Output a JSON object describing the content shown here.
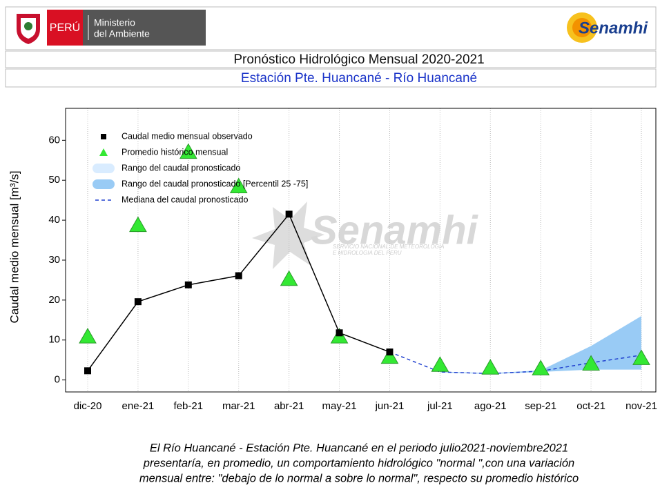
{
  "header": {
    "country": "PERÚ",
    "ministry_1": "Ministerio",
    "ministry_2": "del Ambiente",
    "brand": "Senamhi",
    "title": "Pronóstico Hidrológico Mensual 2020-2021",
    "subtitle": "Estación Pte. Huancané - Río Huancané"
  },
  "chart_data": {
    "type": "line",
    "y_label": "Caudal medio mensual  [m³/s]",
    "watermark": "Senamhi",
    "watermark_sub_1": "SERVICIO NACIONAL DE METEOROLOGIA",
    "watermark_sub_2": "E HIDROLOGIA DEL PERU",
    "categories": [
      "dic-20",
      "ene-21",
      "feb-21",
      "mar-21",
      "abr-21",
      "may-21",
      "jun-21",
      "jul-21",
      "ago-21",
      "sep-21",
      "oct-21",
      "nov-21"
    ],
    "ylim": [
      -3,
      68
    ],
    "yticks": [
      0,
      10,
      20,
      30,
      40,
      50,
      60
    ],
    "grid": "x",
    "series": [
      {
        "name": "Caudal medio mensual observado",
        "color": "#000000",
        "marker": "square",
        "values": [
          2.3,
          19.6,
          23.8,
          26.1,
          41.5,
          11.8,
          7.0,
          null,
          null,
          null,
          null,
          null
        ]
      },
      {
        "name": "Promedio histórico mensual",
        "color": "#33e833",
        "marker": "triangle",
        "values": [
          10.8,
          38.7,
          57.0,
          48.4,
          25.2,
          10.8,
          5.7,
          3.7,
          3.0,
          2.8,
          4.0,
          5.4
        ]
      },
      {
        "name": "Rango del caudal pronosticado",
        "color": "#d9ecff",
        "marker": "band",
        "low": [
          null,
          null,
          null,
          null,
          null,
          null,
          null,
          null,
          null,
          null,
          null,
          null
        ],
        "high": [
          null,
          null,
          null,
          null,
          null,
          null,
          null,
          null,
          null,
          null,
          null,
          null
        ]
      },
      {
        "name": "Rango del caudal pronosticado [Percentil 25 -75]",
        "color": "#99cbf5",
        "marker": "band",
        "low": [
          null,
          null,
          null,
          null,
          null,
          null,
          null,
          1.9,
          1.5,
          2.0,
          2.6,
          2.6
        ],
        "high": [
          null,
          null,
          null,
          null,
          null,
          null,
          null,
          2.1,
          1.7,
          2.4,
          8.5,
          16.0
        ]
      },
      {
        "name": "Mediana del caudal pronosticado",
        "color": "#1f3fcf",
        "marker": "dashed",
        "values": [
          null,
          null,
          null,
          null,
          null,
          null,
          7.0,
          2.0,
          1.6,
          2.2,
          4.3,
          6.2
        ]
      }
    ]
  },
  "note": {
    "lines": [
      "El Río Huancané - Estación Pte. Huancané en el periodo julio2021-noviembre2021",
      "presentaría, en promedio, un comportamiento hidrológico \"normal \",con una variación",
      "mensual entre: \"debajo de lo normal a sobre lo normal\", respecto su promedio histórico"
    ]
  }
}
